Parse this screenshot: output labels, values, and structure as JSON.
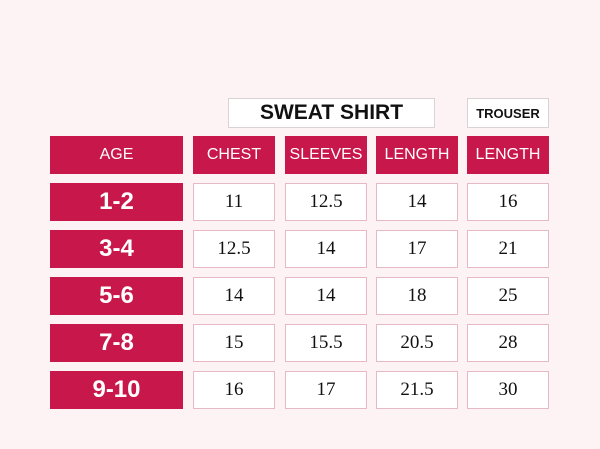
{
  "header": {
    "group1": "SWEAT SHIRT",
    "group2": "TROUSER"
  },
  "table": {
    "columns": [
      "AGE",
      "CHEST",
      "SLEEVES",
      "LENGTH",
      "LENGTH"
    ],
    "rows": [
      [
        "1-2",
        "11",
        "12.5",
        "14",
        "16"
      ],
      [
        "3-4",
        "12.5",
        "14",
        "17",
        "21"
      ],
      [
        "5-6",
        "14",
        "14",
        "18",
        "25"
      ],
      [
        "7-8",
        "15",
        "15.5",
        "20.5",
        "28"
      ],
      [
        "9-10",
        "16",
        "17",
        "21.5",
        "30"
      ]
    ]
  }
}
